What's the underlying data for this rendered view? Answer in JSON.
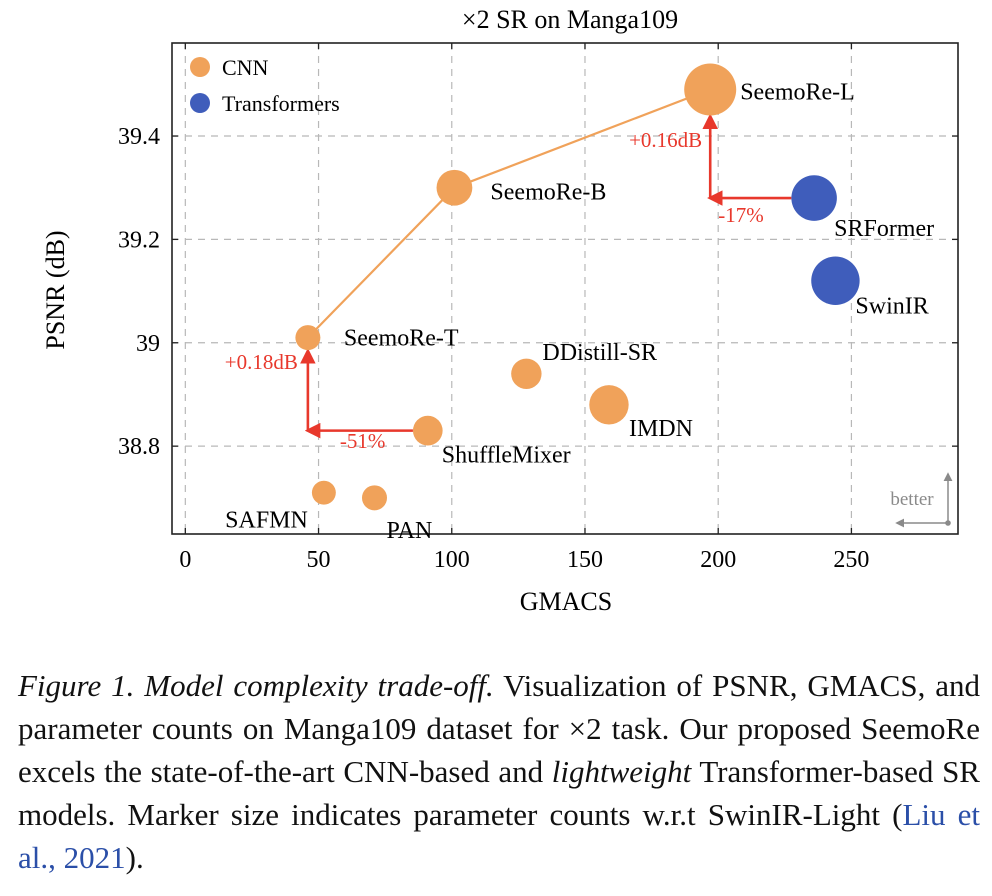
{
  "chart_data": {
    "type": "scatter",
    "title": "×2 SR on Manga109",
    "xlabel": "GMACS",
    "ylabel": "PSNR (dB)",
    "xlim": [
      -5,
      290
    ],
    "ylim": [
      38.63,
      39.58
    ],
    "xticks": [
      0,
      50,
      100,
      150,
      200,
      250
    ],
    "xtick_labels": [
      "0",
      "50",
      "100",
      "150",
      "200",
      "250"
    ],
    "yticks": [
      38.8,
      39.0,
      39.2,
      39.4
    ],
    "ytick_labels": [
      "38.8",
      "39",
      "39.2",
      "39.4"
    ],
    "grid": true,
    "legend_position": "top-left",
    "colors": {
      "CNN": "#f0a25a",
      "Transformers": "#3f5dbb",
      "annotation": "#e8382c",
      "line": "#f0a25a",
      "better": "#8a8a8a"
    },
    "series": [
      {
        "name": "CNN",
        "points": [
          {
            "label": "SeemoRe-L",
            "x": 197,
            "y": 39.49,
            "size": 1.0
          },
          {
            "label": "SeemoRe-B",
            "x": 101,
            "y": 39.3,
            "size": 0.55
          },
          {
            "label": "SeemoRe-T",
            "x": 46,
            "y": 39.01,
            "size": 0.25
          },
          {
            "label": "DDistill-SR",
            "x": 128,
            "y": 38.94,
            "size": 0.4
          },
          {
            "label": "IMDN",
            "x": 159,
            "y": 38.88,
            "size": 0.65
          },
          {
            "label": "ShuffleMixer",
            "x": 91,
            "y": 38.83,
            "size": 0.38
          },
          {
            "label": "SAFMN",
            "x": 52,
            "y": 38.71,
            "size": 0.22
          },
          {
            "label": "PAN",
            "x": 71,
            "y": 38.7,
            "size": 0.25
          }
        ]
      },
      {
        "name": "Transformers",
        "points": [
          {
            "label": "SRFormer",
            "x": 236,
            "y": 39.28,
            "size": 0.82
          },
          {
            "label": "SwinIR",
            "x": 244,
            "y": 39.12,
            "size": 0.9
          }
        ]
      }
    ],
    "line": {
      "labels": [
        "SeemoRe-T",
        "SeemoRe-B",
        "SeemoRe-L"
      ]
    },
    "annotations": [
      {
        "text": "+0.16dB"
      },
      {
        "text": "-17%"
      },
      {
        "text": "+0.18dB"
      },
      {
        "text": "-51%"
      }
    ],
    "better_label": "better"
  },
  "caption": {
    "figure_label": "Figure 1.",
    "title": "Model complexity trade-off.",
    "text1": " Visualization of PSNR, GMACS, and parameter counts on Manga109 dataset for ×2 task. Our proposed SeemoRe excels the state-of-the-art CNN-based and ",
    "emph": "lightweight",
    "text2": " Transformer-based SR models. Marker size indicates parameter counts w.r.t SwinIR-Light (",
    "citation": "Liu et al., 2021",
    "text3": ")."
  }
}
